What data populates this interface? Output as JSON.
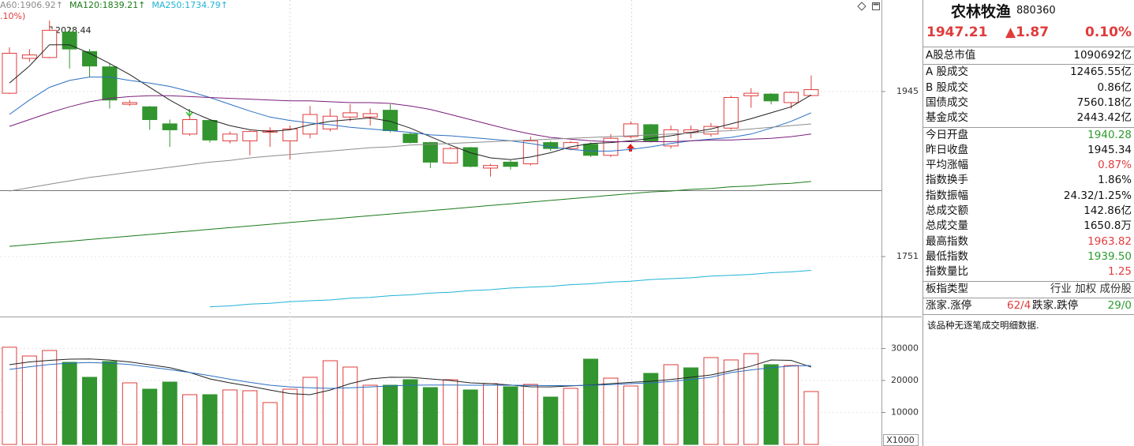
{
  "chart_data": [
    {
      "type": "candlestick",
      "header_note": ".10%)",
      "categories": [
        null,
        null,
        null,
        null,
        null,
        null,
        null,
        null,
        null,
        null,
        null,
        null,
        null,
        null,
        null,
        null,
        null,
        null,
        null,
        null,
        null,
        null,
        null,
        null,
        null,
        null,
        null,
        null,
        null,
        null,
        null,
        null,
        null,
        null,
        null,
        null,
        null,
        null,
        null,
        null,
        null
      ],
      "open": [
        1943,
        1984,
        1985,
        2015,
        1992,
        1974,
        1930,
        1927,
        1907,
        1895,
        1911,
        1887,
        1887,
        1897,
        1887,
        1895,
        1901,
        1915,
        1915,
        1923,
        1895,
        1885,
        1861,
        1879,
        1855,
        1862,
        1860,
        1885,
        1878,
        1883,
        1870,
        1892,
        1906,
        1881,
        1897,
        1895,
        1902,
        1940,
        1942,
        1932,
        1940.28
      ],
      "high": [
        1997,
        1995,
        2028.44,
        2020,
        1995,
        1978,
        1935,
        1928,
        1912,
        1917,
        1912,
        1898,
        1899,
        1903,
        1905,
        1928,
        1925,
        1930,
        1925,
        1930,
        1897,
        1886,
        1880,
        1880,
        1860,
        1864,
        1892,
        1887,
        1887,
        1885,
        1895,
        1910,
        1907,
        1905,
        1905,
        1908,
        1940,
        1949,
        1943,
        1945,
        1963.82
      ],
      "low": [
        1942,
        1980,
        1984,
        1972,
        1962,
        1925,
        1928,
        1900,
        1880,
        1893,
        1885,
        1884,
        1870,
        1880,
        1865,
        1890,
        1898,
        1910,
        1905,
        1897,
        1884,
        1855,
        1860,
        1856,
        1845,
        1853,
        1858,
        1875,
        1876,
        1868,
        1868,
        1890,
        1885,
        1878,
        1890,
        1892,
        1900,
        1926,
        1930,
        1925,
        1939.5
      ],
      "close": [
        1990,
        1988,
        2017,
        1995,
        1975,
        1935,
        1932,
        1912,
        1900,
        1912,
        1888,
        1895,
        1898,
        1899,
        1901,
        1918,
        1916,
        1920,
        1919,
        1899,
        1885,
        1862,
        1878,
        1857,
        1858,
        1857,
        1887,
        1878,
        1885,
        1870,
        1890,
        1907,
        1887,
        1900,
        1900,
        1904,
        1938,
        1943,
        1934,
        1944,
        1947.21
      ],
      "up_color": "#e03c3c",
      "down_color": "#32952f",
      "series": [
        {
          "color": "#222222",
          "values": [
            1955,
            1975,
            2000,
            2000,
            1990,
            1978,
            1965,
            1950,
            1935,
            1922,
            1912,
            1905,
            1900,
            1898,
            1900,
            1906,
            1910,
            1912,
            1914,
            1910,
            1902,
            1892,
            1882,
            1873,
            1867,
            1865,
            1868,
            1873,
            1880,
            1884,
            1885,
            1887,
            1890,
            1893,
            1897,
            1901,
            1907,
            1913,
            1920,
            1927,
            1941
          ]
        },
        {
          "color": "#2a6fc0",
          "values": [
            1918,
            1935,
            1950,
            1958,
            1962,
            1962,
            1958,
            1955,
            1951,
            1945,
            1938,
            1930,
            1922,
            1915,
            1911,
            1908,
            1906,
            1903,
            1901,
            1899,
            1897,
            1894,
            1893,
            1891,
            1889,
            1887,
            1884,
            1880,
            1877,
            1875,
            1875,
            1877,
            1880,
            1884,
            1887,
            1889,
            1891,
            1895,
            1902,
            1910,
            1920
          ]
        },
        {
          "color": "#7a1f7a",
          "values": [
            1904,
            1912,
            1920,
            1927,
            1933,
            1937,
            1939,
            1940,
            1940,
            1939,
            1938,
            1937,
            1936,
            1935,
            1934,
            1934,
            1933,
            1932,
            1932,
            1931,
            1928,
            1924,
            1918,
            1912,
            1906,
            1900,
            1895,
            1891,
            1889,
            1887,
            1886,
            1886,
            1886,
            1886,
            1887,
            1888,
            1888,
            1889,
            1890,
            1892,
            1895
          ]
        },
        {
          "name": "A60:1906.92↑",
          "color": "#8c8c8c",
          "values": [
            1828,
            1832,
            1836,
            1840,
            1844,
            1847,
            1850,
            1853,
            1856,
            1859,
            1862,
            1864,
            1867,
            1869,
            1871,
            1873,
            1875,
            1877,
            1879,
            1880,
            1882,
            1883,
            1884,
            1885,
            1886,
            1887,
            1888,
            1889,
            1890,
            1891,
            1892,
            1893,
            1894,
            1895,
            1896,
            1898,
            1899,
            1901,
            1903,
            1905,
            1906.92
          ]
        },
        {
          "name": "MA120:1839.21↑",
          "color": "#1a7a1a",
          "values": [
            1763,
            1765,
            1767,
            1769,
            1771,
            1773,
            1775,
            1777,
            1779,
            1781,
            1783,
            1785,
            1787,
            1789,
            1791,
            1793,
            1795,
            1797,
            1799,
            1801,
            1803,
            1805,
            1807,
            1809,
            1811,
            1813,
            1815,
            1817,
            1819,
            1821,
            1823,
            1825,
            1827,
            1828,
            1830,
            1831,
            1833,
            1834,
            1836,
            1837,
            1839.21
          ]
        },
        {
          "name": "MA250:1734.79↑",
          "color": "#1fb3d6",
          "values": [
            null,
            null,
            null,
            null,
            null,
            null,
            null,
            null,
            null,
            null,
            1692,
            1693,
            1695,
            1696,
            1698,
            1699,
            1700,
            1702,
            1703,
            1705,
            1706,
            1708,
            1709,
            1711,
            1712,
            1714,
            1715,
            1716,
            1718,
            1719,
            1721,
            1722,
            1724,
            1725,
            1726,
            1728,
            1729,
            1730,
            1732,
            1733,
            1734.79
          ]
        }
      ],
      "ylim": [
        1681.4,
        2052.6
      ],
      "yticks": [
        1751,
        1945
      ],
      "grid": true
    },
    {
      "type": "bar",
      "unit_label": "X1000",
      "categories": [
        null,
        null,
        null,
        null,
        null,
        null,
        null,
        null,
        null,
        null,
        null,
        null,
        null,
        null,
        null,
        null,
        null,
        null,
        null,
        null,
        null,
        null,
        null,
        null,
        null,
        null,
        null,
        null,
        null,
        null,
        null,
        null,
        null,
        null,
        null,
        null,
        null,
        null,
        null,
        null,
        null
      ],
      "values": [
        30400,
        27650,
        29380,
        25680,
        20990,
        25930,
        19260,
        17280,
        19500,
        15560,
        15560,
        17040,
        16790,
        13090,
        17280,
        20990,
        26170,
        24200,
        18520,
        18520,
        20250,
        17780,
        20250,
        17040,
        19010,
        18020,
        18770,
        14810,
        17530,
        26670,
        20740,
        18270,
        22220,
        24940,
        23950,
        27160,
        26420,
        28400,
        24940,
        24690,
        16540
      ],
      "colors": [
        "#e03c3c",
        "#e03c3c",
        "#e03c3c",
        "#32952f",
        "#32952f",
        "#32952f",
        "#e03c3c",
        "#32952f",
        "#32952f",
        "#e03c3c",
        "#32952f",
        "#e03c3c",
        "#e03c3c",
        "#e03c3c",
        "#e03c3c",
        "#e03c3c",
        "#e03c3c",
        "#e03c3c",
        "#e03c3c",
        "#32952f",
        "#32952f",
        "#32952f",
        "#e03c3c",
        "#32952f",
        "#e03c3c",
        "#32952f",
        "#e03c3c",
        "#32952f",
        "#e03c3c",
        "#32952f",
        "#e03c3c",
        "#e03c3c",
        "#32952f",
        "#e03c3c",
        "#32952f",
        "#e03c3c",
        "#e03c3c",
        "#e03c3c",
        "#32952f",
        "#e03c3c",
        "#e03c3c"
      ],
      "hollow_color": "#e03c3c",
      "series": [
        {
          "color": "#222222",
          "values": [
            24940,
            25800,
            26300,
            26670,
            26700,
            26400,
            25800,
            24900,
            24000,
            22500,
            20500,
            19260,
            18200,
            17000,
            15900,
            15560,
            17000,
            19000,
            20500,
            21000,
            20990,
            20500,
            20000,
            19260,
            19000,
            18600,
            18020,
            18000,
            18300,
            18600,
            19000,
            19400,
            19750,
            20300,
            21000,
            21730,
            23000,
            24500,
            26420,
            26300,
            24200
          ]
        },
        {
          "color": "#2a6fc0",
          "values": [
            23460,
            24300,
            25000,
            25430,
            25600,
            25400,
            25000,
            24200,
            23400,
            22500,
            21500,
            20400,
            19400,
            18520,
            18000,
            17700,
            17530,
            17700,
            18000,
            18300,
            18520,
            18600,
            18600,
            18520,
            18520,
            18520,
            18450,
            18400,
            18400,
            18500,
            18700,
            19000,
            19260,
            19700,
            20300,
            21000,
            22470,
            23300,
            24000,
            24500,
            24690
          ]
        }
      ],
      "ylim": [
        0,
        39500
      ],
      "yticks": [
        10000,
        20000,
        30000
      ],
      "grid": true
    }
  ],
  "quote_panel": {
    "name": "农林牧渔",
    "code": "880360",
    "price": "1947.21",
    "change": "▲1.87",
    "change_pct": "0.10%",
    "quote_color": "#e03c3c",
    "sections": [
      [
        {
          "label": "A股总市值",
          "value": "1090692亿",
          "color": "#111111"
        }
      ],
      [
        {
          "label": "A 股成交",
          "value": "12465.55亿",
          "color": "#111111"
        },
        {
          "label": "B 股成交",
          "value": "0.86亿",
          "color": "#111111"
        },
        {
          "label": "国债成交",
          "value": "7560.18亿",
          "color": "#111111"
        },
        {
          "label": "基金成交",
          "value": "2443.42亿",
          "color": "#111111"
        }
      ],
      [
        {
          "label": "今日开盘",
          "value": "1940.28",
          "color": "#2e9a2e"
        },
        {
          "label": "昨日收盘",
          "value": "1945.34",
          "color": "#111111"
        },
        {
          "label": "平均涨幅",
          "value": "0.87%",
          "color": "#e03c3c"
        },
        {
          "label": "指数换手",
          "value": "1.86%",
          "color": "#111111"
        },
        {
          "label": "指数振幅",
          "value": "24.32/1.25%",
          "color": "#111111"
        },
        {
          "label": "总成交额",
          "value": "142.86亿",
          "color": "#111111"
        },
        {
          "label": "总成交量",
          "value": "1650.8万",
          "color": "#111111"
        },
        {
          "label": "最高指数",
          "value": "1963.82",
          "color": "#e03c3c"
        },
        {
          "label": "最低指数",
          "value": "1939.50",
          "color": "#2e9a2e"
        },
        {
          "label": "指数量比",
          "value": "1.25",
          "color": "#e03c3c"
        }
      ],
      [
        {
          "label": "板指类型",
          "value": "行业 加权 成份股",
          "color": "#333333"
        }
      ],
      [
        {
          "label": "涨家.涨停",
          "value": "62/4",
          "color": "#e03c3c",
          "label2": "跌家.跌停",
          "value2": "29/0",
          "color2": "#2e9a2e"
        }
      ]
    ],
    "note": "该品种无逐笔成交明细数据."
  }
}
